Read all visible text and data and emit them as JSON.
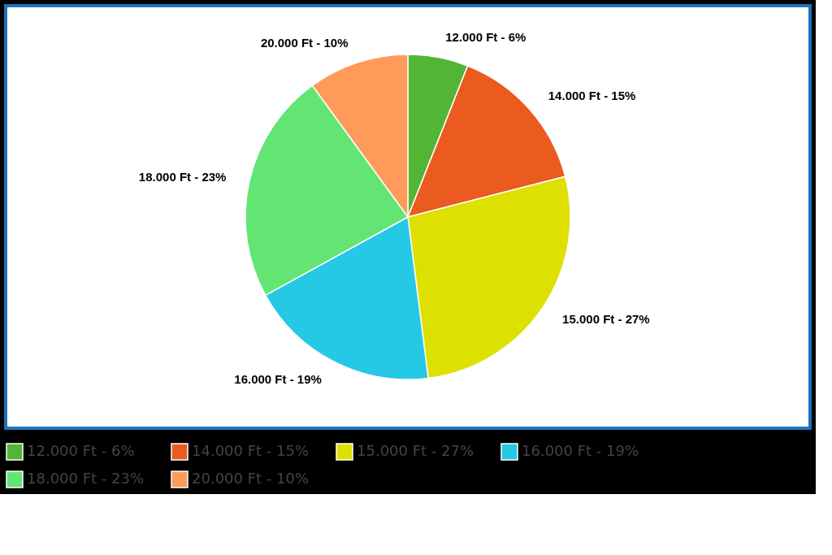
{
  "chart_data": {
    "type": "pie",
    "categories": [
      "12.000 Ft - 6%",
      "14.000 Ft - 15%",
      "15.000 Ft - 27%",
      "16.000 Ft - 19%",
      "18.000 Ft - 23%",
      "20.000 Ft - 10%"
    ],
    "values": [
      6,
      15,
      27,
      19,
      23,
      10
    ],
    "colors": [
      "#52b535",
      "#eb5a1e",
      "#dde000",
      "#25c8e5",
      "#63e574",
      "#ff9a5a"
    ],
    "legend": "bottom"
  }
}
